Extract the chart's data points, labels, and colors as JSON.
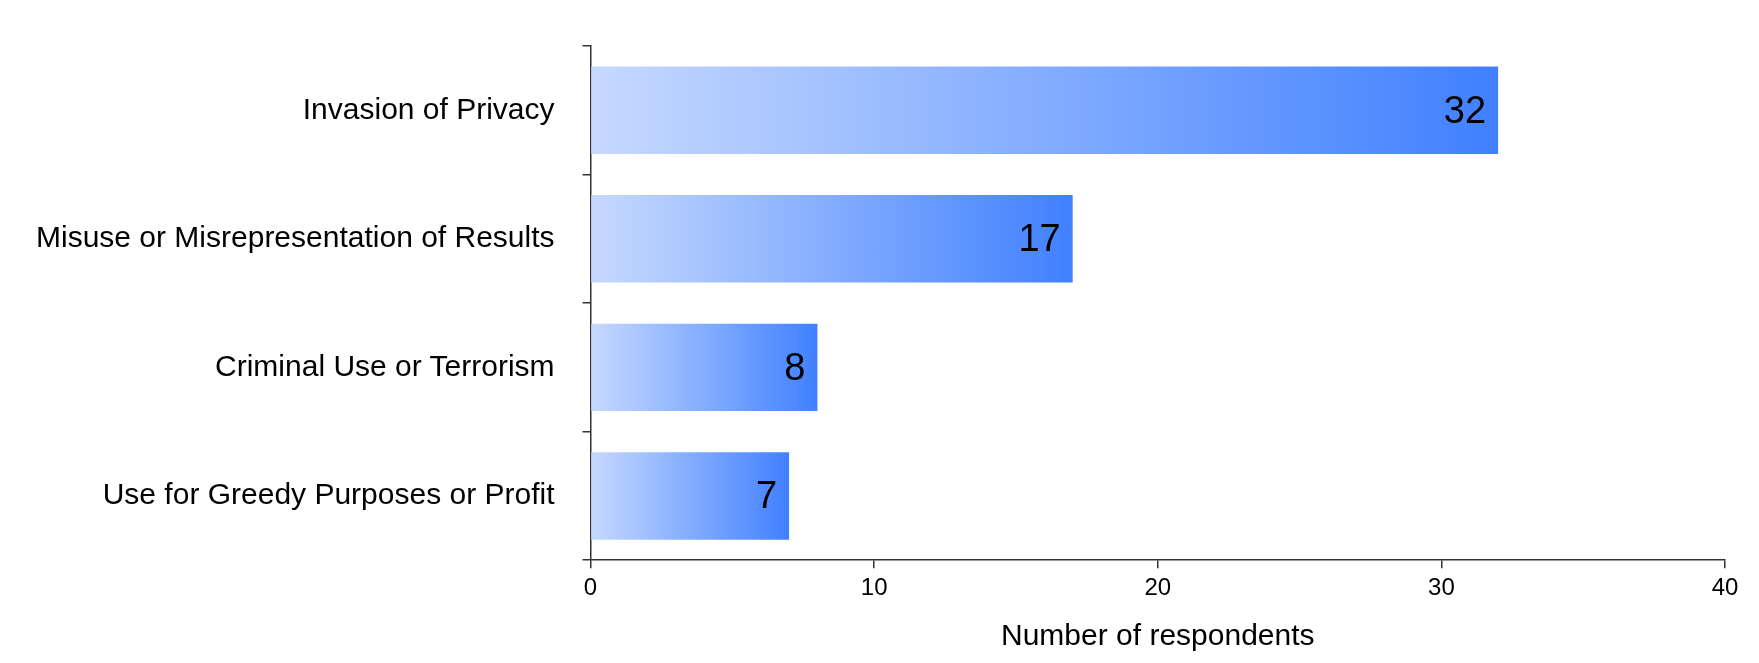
{
  "chart_data": {
    "type": "bar",
    "orientation": "horizontal",
    "xlabel": "Number of respondents",
    "categories": [
      "Invasion of Privacy",
      "Misuse or Misrepresentation of Results",
      "Criminal Use or Terrorism",
      "Use for Greedy Purposes or Profit"
    ],
    "values": [
      32,
      17,
      8,
      7
    ],
    "color": "#4080ff",
    "xlim": [
      0,
      40
    ],
    "xticks": [
      0,
      10,
      20,
      30,
      40
    ],
    "grid": false,
    "legend": false,
    "data_labels": true
  }
}
